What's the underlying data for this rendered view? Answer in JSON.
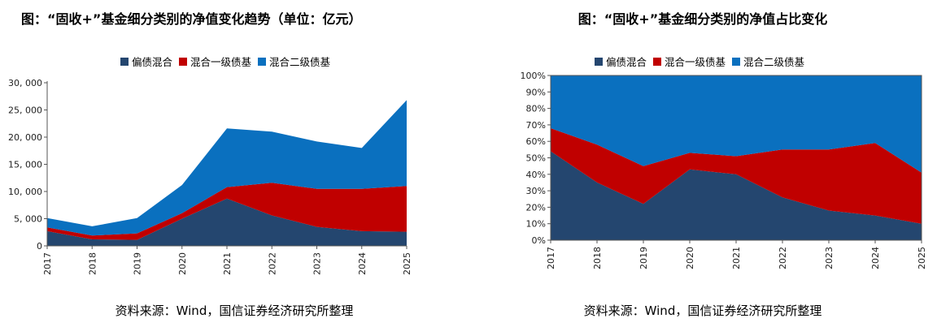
{
  "charts": [
    {
      "title": "图：“固收+”基金细分类别的净值变化趋势（单位：亿元）",
      "source": "资料来源：Wind，国信证券经济研究所整理"
    },
    {
      "title": "图：“固收+”基金细分类别的净值占比变化",
      "source": "资料来源：Wind，国信证券经济研究所整理"
    }
  ],
  "chart_data": [
    {
      "type": "area",
      "stacked": true,
      "title": "图：“固收+”基金细分类别的净值变化趋势（单位：亿元）",
      "categories": [
        "2017",
        "2018",
        "2019",
        "2020",
        "2021",
        "2022",
        "2023",
        "2024",
        "2025"
      ],
      "series": [
        {
          "name": "偏债混合",
          "color": "#24466f",
          "values": [
            2700,
            1200,
            1100,
            5000,
            8700,
            5600,
            3500,
            2700,
            2600
          ]
        },
        {
          "name": "混合一级债基",
          "color": "#c00000",
          "values": [
            700,
            700,
            1200,
            1000,
            2100,
            6000,
            7000,
            7800,
            8400
          ]
        },
        {
          "name": "混合二级债基",
          "color": "#0a70bf",
          "values": [
            1700,
            1700,
            2800,
            5200,
            10800,
            9400,
            8700,
            7500,
            15800
          ]
        }
      ],
      "yticks": [
        "0",
        "5, 000",
        "10, 000",
        "15, 000",
        "20, 000",
        "25, 000",
        "30, 000"
      ],
      "ylim": [
        0,
        30000
      ],
      "legend_position": "top"
    },
    {
      "type": "area",
      "stacked": true,
      "title": "图：“固收+”基金细分类别的净值占比变化",
      "categories": [
        "2017",
        "2018",
        "2019",
        "2020",
        "2021",
        "2022",
        "2023",
        "2024",
        "2025"
      ],
      "series": [
        {
          "name": "偏债混合",
          "color": "#24466f",
          "values": [
            54,
            35,
            22,
            43,
            40,
            26,
            18,
            15,
            10
          ]
        },
        {
          "name": "混合一级债基",
          "color": "#c00000",
          "values": [
            14,
            23,
            23,
            10,
            11,
            29,
            37,
            44,
            31
          ]
        },
        {
          "name": "混合二级债基",
          "color": "#0a70bf",
          "values": [
            32,
            42,
            55,
            47,
            49,
            45,
            45,
            41,
            59
          ]
        }
      ],
      "yticks": [
        "0%",
        "10%",
        "20%",
        "30%",
        "40%",
        "50%",
        "60%",
        "70%",
        "80%",
        "90%",
        "100%"
      ],
      "ylim": [
        0,
        100
      ],
      "legend_position": "top"
    }
  ]
}
